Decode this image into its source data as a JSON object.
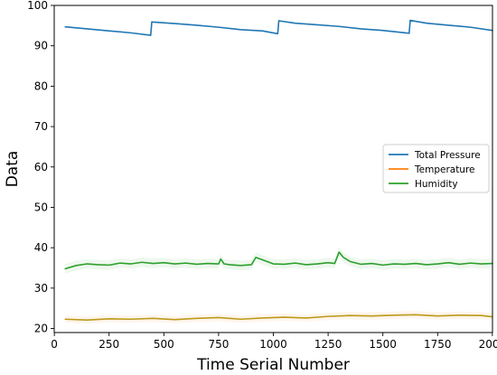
{
  "chart_data": {
    "type": "line",
    "title": "",
    "xlabel": "Time Serial Number",
    "ylabel": "Data",
    "xlim": [
      -0.5,
      2000.5
    ],
    "ylim": [
      19,
      100
    ],
    "xticks": [
      0,
      250,
      500,
      750,
      1000,
      1250,
      1500,
      1750,
      2000
    ],
    "yticks": [
      20,
      30,
      40,
      50,
      60,
      70,
      80,
      90,
      100
    ],
    "grid": false,
    "legend_position": "center-right",
    "series": [
      {
        "name": "Total Pressure",
        "color": "#1f77b4",
        "x": [
          50,
          150,
          250,
          350,
          440,
          445,
          550,
          650,
          750,
          850,
          950,
          1020,
          1025,
          1100,
          1200,
          1300,
          1400,
          1500,
          1620,
          1625,
          1700,
          1800,
          1900,
          2000
        ],
        "y": [
          94.7,
          94.2,
          93.7,
          93.2,
          92.6,
          95.9,
          95.5,
          95.1,
          94.6,
          94.0,
          93.7,
          93.0,
          96.2,
          95.6,
          95.2,
          94.8,
          94.2,
          93.8,
          93.1,
          96.3,
          95.6,
          95.1,
          94.6,
          93.8
        ]
      },
      {
        "name": "Temperature",
        "color": "#ff7f0e",
        "x": [
          50,
          150,
          250,
          350,
          450,
          550,
          650,
          750,
          850,
          950,
          1050,
          1150,
          1250,
          1350,
          1450,
          1550,
          1650,
          1750,
          1850,
          1950,
          2000
        ],
        "y": [
          22.3,
          22.1,
          22.4,
          22.3,
          22.5,
          22.2,
          22.5,
          22.7,
          22.3,
          22.6,
          22.8,
          22.6,
          23.0,
          23.2,
          23.1,
          23.3,
          23.4,
          23.1,
          23.3,
          23.2,
          22.9
        ]
      },
      {
        "name": "Humidity",
        "color": "#2ca02c",
        "x": [
          50,
          100,
          150,
          200,
          250,
          300,
          350,
          400,
          450,
          500,
          550,
          600,
          650,
          700,
          750,
          760,
          775,
          800,
          850,
          900,
          920,
          950,
          1000,
          1050,
          1100,
          1150,
          1200,
          1250,
          1280,
          1300,
          1320,
          1350,
          1400,
          1450,
          1500,
          1550,
          1600,
          1650,
          1700,
          1750,
          1800,
          1850,
          1900,
          1950,
          2000
        ],
        "y": [
          34.8,
          35.6,
          36.0,
          35.8,
          35.7,
          36.2,
          36.0,
          36.4,
          36.1,
          36.3,
          36.0,
          36.2,
          35.9,
          36.1,
          36.0,
          37.2,
          36.0,
          35.8,
          35.6,
          35.8,
          37.6,
          37.0,
          36.0,
          35.9,
          36.2,
          35.8,
          36.0,
          36.3,
          36.1,
          38.9,
          37.6,
          36.6,
          35.9,
          36.1,
          35.7,
          36.0,
          35.9,
          36.1,
          35.8,
          36.0,
          36.3,
          35.9,
          36.2,
          36.0,
          36.1
        ]
      }
    ]
  }
}
